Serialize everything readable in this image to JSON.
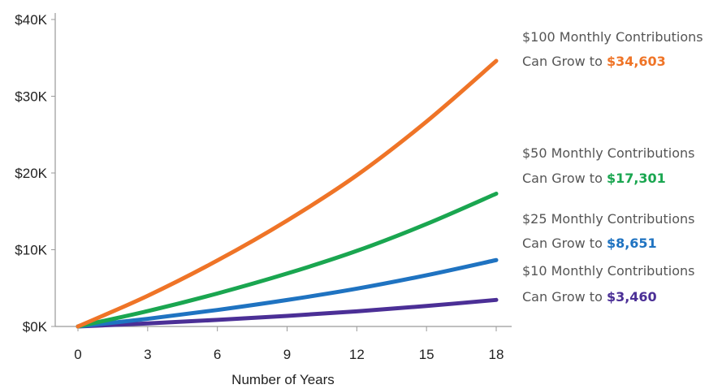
{
  "chart_data": {
    "type": "line",
    "xlabel": "Number of Years",
    "ylabel": "",
    "x_ticks": [
      0,
      3,
      6,
      9,
      12,
      15,
      18
    ],
    "y_ticks": [
      0,
      10000,
      20000,
      30000,
      40000
    ],
    "y_tick_labels": [
      "$0K",
      "$10K",
      "$20K",
      "$30K",
      "$40K"
    ],
    "xlim": [
      0,
      18
    ],
    "ylim": [
      0,
      40000
    ],
    "grid": false,
    "series": [
      {
        "name": "$100 Monthly Contributions",
        "color": "#ef7427",
        "x": [
          0,
          3,
          6,
          9,
          12,
          15,
          18
        ],
        "values": [
          0,
          4000,
          8600,
          13800,
          19700,
          26700,
          34603
        ],
        "annotation": {
          "line1": "$100 Monthly Contributions",
          "line2_prefix": "Can Grow to ",
          "amount": "$34,603"
        }
      },
      {
        "name": "$50 Monthly Contributions",
        "color": "#1aa650",
        "x": [
          0,
          3,
          6,
          9,
          12,
          15,
          18
        ],
        "values": [
          0,
          2000,
          4300,
          6900,
          9850,
          13350,
          17301
        ],
        "annotation": {
          "line1": "$50 Monthly Contributions",
          "line2_prefix": "Can Grow to ",
          "amount": "$17,301"
        }
      },
      {
        "name": "$25 Monthly Contributions",
        "color": "#1f73c1",
        "x": [
          0,
          3,
          6,
          9,
          12,
          15,
          18
        ],
        "values": [
          0,
          1000,
          2150,
          3450,
          4925,
          6675,
          8651
        ],
        "annotation": {
          "line1": "$25 Monthly Contributions",
          "line2_prefix": "Can Grow to ",
          "amount": "$8,651"
        }
      },
      {
        "name": "$10 Monthly Contributions",
        "color": "#4b2f96",
        "x": [
          0,
          3,
          6,
          9,
          12,
          15,
          18
        ],
        "values": [
          0,
          400,
          860,
          1380,
          1970,
          2670,
          3460
        ],
        "annotation": {
          "line1": "$10 Monthly Contributions",
          "line2_prefix": "Can Grow to ",
          "amount": "$3,460"
        }
      }
    ]
  }
}
